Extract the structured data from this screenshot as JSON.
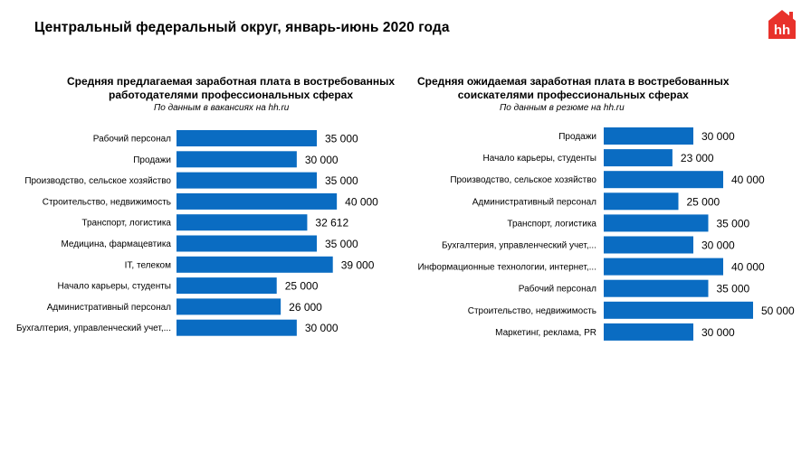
{
  "page": {
    "title": "Центральный федеральный округ, январь-июнь 2020 года",
    "logo_text": "hh"
  },
  "colors": {
    "bar": "#0a6cc2",
    "logo": "#e8322b"
  },
  "chart_data": [
    {
      "type": "bar",
      "orientation": "horizontal",
      "title_line1": "Средняя предлагаемая заработная плата в востребованных",
      "title_line2": "работодателями профессиональных сферах",
      "subtitle": "По данным в вакансиях на hh.ru",
      "categories": [
        "Рабочий персонал",
        "Продажи",
        "Производство, сельское хозяйство",
        "Строительство, недвижимость",
        "Транспорт, логистика",
        "Медицина, фармацевтика",
        "IT, телеком",
        "Начало карьеры, студенты",
        "Административный персонал",
        "Бухгалтерия, управленческий учет,..."
      ],
      "values": [
        35000,
        30000,
        35000,
        40000,
        32612,
        35000,
        39000,
        25000,
        26000,
        30000
      ],
      "value_labels": [
        "35 000",
        "30 000",
        "35 000",
        "40 000",
        "32 612",
        "35 000",
        "39 000",
        "25 000",
        "26 000",
        "30 000"
      ],
      "grid": false,
      "legend": "none"
    },
    {
      "type": "bar",
      "orientation": "horizontal",
      "title_line1": "Средняя ожидаемая заработная плата в востребованных",
      "title_line2": "соискателями профессиональных сферах",
      "subtitle": "По данным в резюме на hh.ru",
      "categories": [
        "Продажи",
        "Начало карьеры, студенты",
        "Производство, сельское хозяйство",
        "Административный персонал",
        "Транспорт, логистика",
        "Бухгалтерия, управленческий учет,...",
        "Информационные технологии, интернет,...",
        "Рабочий персонал",
        "Строительство, недвижимость",
        "Маркетинг, реклама, PR"
      ],
      "values": [
        30000,
        23000,
        40000,
        25000,
        35000,
        30000,
        40000,
        35000,
        50000,
        30000
      ],
      "value_labels": [
        "30 000",
        "23 000",
        "40 000",
        "25 000",
        "35 000",
        "30 000",
        "40 000",
        "35 000",
        "50 000",
        "30 000"
      ],
      "grid": false,
      "legend": "none"
    }
  ]
}
